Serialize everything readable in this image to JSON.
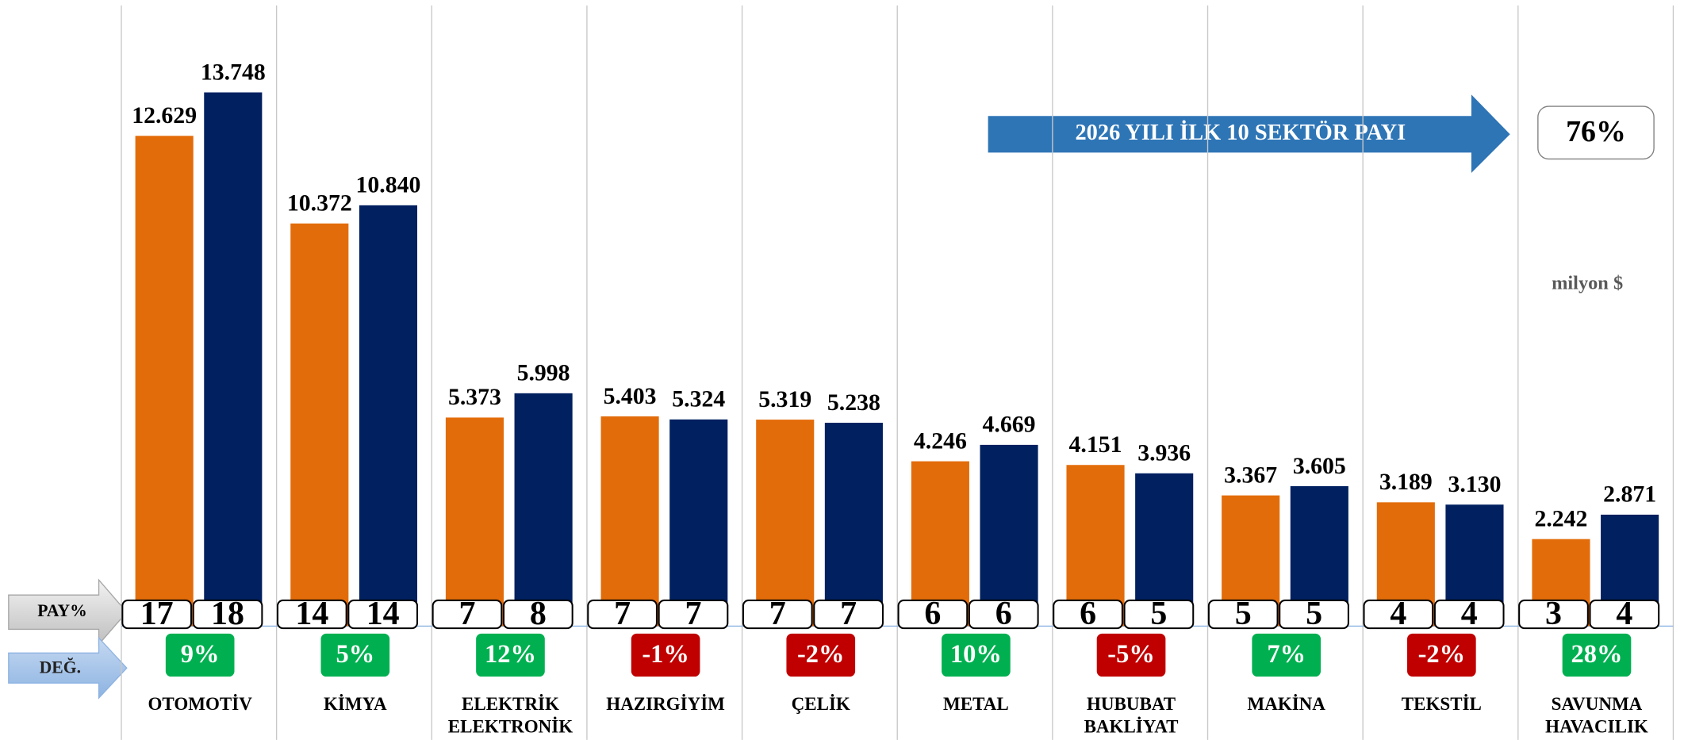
{
  "chart_data": {
    "type": "bar",
    "categories": [
      "OTOMOTİV",
      "KİMYA",
      "ELEKTRİK ELEKTRONİK",
      "HAZIRGİYİM",
      "ÇELİK",
      "METAL",
      "HUBUBAT BAKLİYAT",
      "MAKİNA",
      "TEKSTİL",
      "SAVUNMA HAVACILIK"
    ],
    "series": [
      {
        "color": "#e36c0a",
        "values": [
          12629,
          10372,
          5373,
          5403,
          5319,
          4246,
          4151,
          3367,
          3189,
          2242
        ],
        "value_labels": [
          "12.629",
          "10.372",
          "5.373",
          "5.403",
          "5.319",
          "4.246",
          "4.151",
          "3.367",
          "3.189",
          "2.242"
        ]
      },
      {
        "color": "#002060",
        "values": [
          13748,
          10840,
          5998,
          5324,
          5238,
          4669,
          3936,
          3605,
          3130,
          2871
        ],
        "value_labels": [
          "13.748",
          "10.840",
          "5.998",
          "5.324",
          "5.238",
          "4.669",
          "3.936",
          "3.605",
          "3.130",
          "2.871"
        ]
      }
    ],
    "share_label": "PAY%",
    "shares": [
      [
        17,
        14,
        7,
        7,
        7,
        6,
        6,
        5,
        4,
        3
      ],
      [
        18,
        14,
        8,
        7,
        7,
        6,
        5,
        5,
        4,
        4
      ]
    ],
    "change_label": "DEĞ.",
    "change": {
      "values": [
        9,
        5,
        12,
        -1,
        -2,
        10,
        -5,
        7,
        -2,
        28
      ],
      "value_labels": [
        "9%",
        "5%",
        "12%",
        "-1%",
        "-2%",
        "10%",
        "-5%",
        "7%",
        "-2%",
        "28%"
      ],
      "positive_color": "#00b050",
      "negative_color": "#c00000"
    },
    "arrow_text": "2026 YILI İLK 10 SEKTÖR PAYI",
    "total_share": {
      "value": 76,
      "label": "76%"
    },
    "unit": "milyon $"
  }
}
